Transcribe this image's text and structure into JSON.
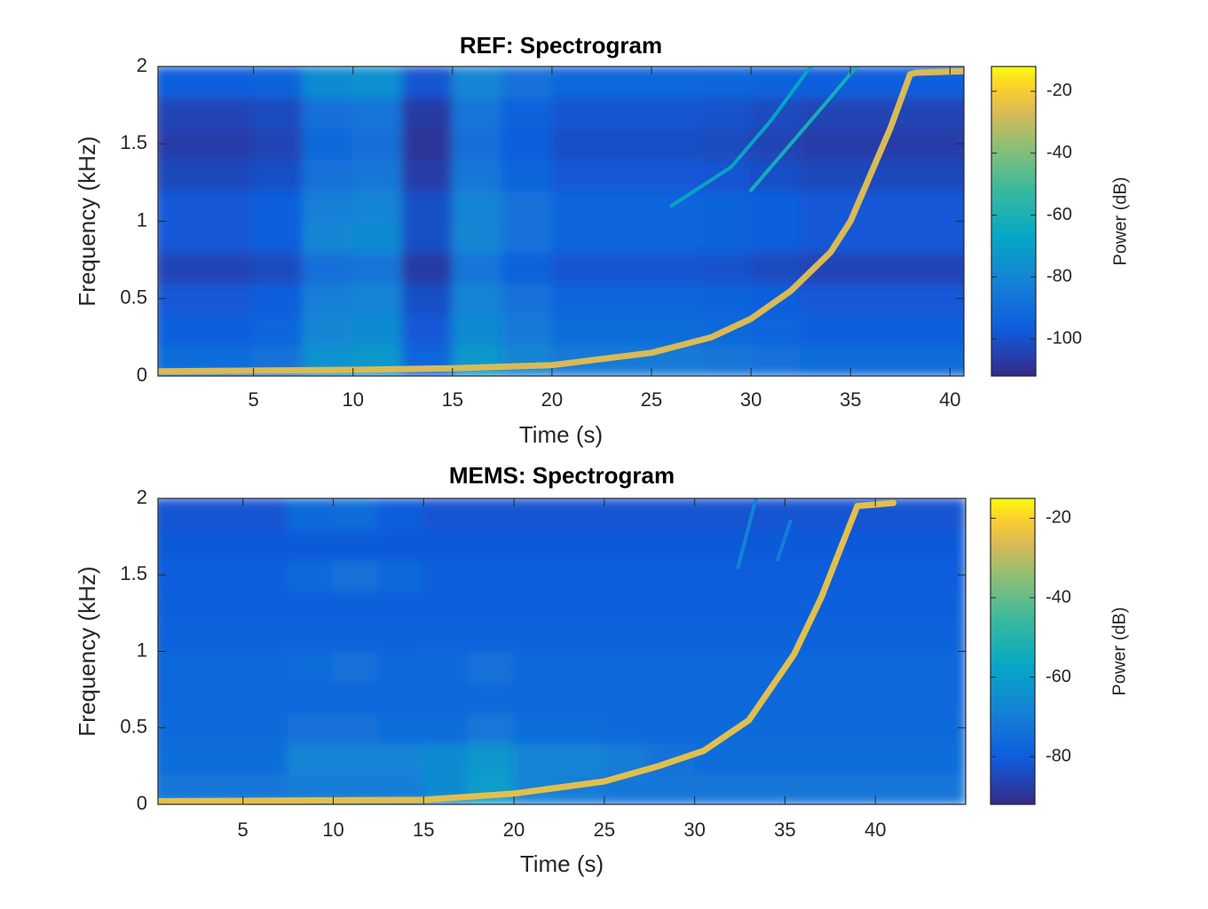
{
  "chart_data": [
    {
      "type": "spectrogram",
      "title": "REF: Spectrogram",
      "x_label": "Time (s)",
      "y_label": "Frequency (kHz)",
      "colorbar_label": "Power (dB)",
      "xlim": [
        0.2,
        40.7
      ],
      "xticks": [
        5,
        10,
        15,
        20,
        25,
        30,
        35,
        40
      ],
      "ylim": [
        0,
        2
      ],
      "yticks": [
        0,
        0.5,
        1,
        1.5,
        2
      ],
      "clim": [
        -112,
        -12
      ],
      "cticks": [
        -100,
        -80,
        -60,
        -40,
        -20
      ],
      "times": [
        1.25,
        3.75,
        6.25,
        8.75,
        11.25,
        13.75,
        16.25,
        18.75,
        21.25,
        23.75,
        26.25,
        28.75,
        31.25,
        33.75,
        36.25,
        38.75,
        41.25
      ],
      "frequencies": [
        0.1,
        0.3,
        0.5,
        0.7,
        0.9,
        1.1,
        1.3,
        1.5,
        1.7,
        1.9
      ],
      "values": [
        [
          -90,
          -90,
          -88,
          -75,
          -73,
          -93,
          -73,
          -80,
          -85,
          -85,
          -85,
          -86,
          -88,
          -90,
          -90,
          -90,
          -90
        ],
        [
          -95,
          -95,
          -93,
          -80,
          -78,
          -98,
          -78,
          -85,
          -90,
          -90,
          -90,
          -91,
          -93,
          -95,
          -95,
          -95,
          -95
        ],
        [
          -98,
          -98,
          -96,
          -83,
          -81,
          -101,
          -81,
          -88,
          -93,
          -93,
          -93,
          -94,
          -96,
          -98,
          -98,
          -98,
          -98
        ],
        [
          -104,
          -104,
          -102,
          -89,
          -87,
          -107,
          -87,
          -94,
          -99,
          -99,
          -99,
          -100,
          -102,
          -104,
          -104,
          -104,
          -104
        ],
        [
          -98,
          -98,
          -96,
          -80,
          -78,
          -101,
          -80,
          -88,
          -93,
          -93,
          -93,
          -94,
          -96,
          -98,
          -98,
          -98,
          -98
        ],
        [
          -98,
          -98,
          -96,
          -83,
          -81,
          -101,
          -81,
          -88,
          -93,
          -93,
          -93,
          -94,
          -96,
          -98,
          -98,
          -98,
          -98
        ],
        [
          -103,
          -103,
          -101,
          -88,
          -86,
          -106,
          -86,
          -93,
          -98,
          -98,
          -98,
          -99,
          -101,
          -103,
          -103,
          -103,
          -103
        ],
        [
          -106,
          -106,
          -104,
          -91,
          -89,
          -109,
          -89,
          -96,
          -101,
          -101,
          -101,
          -102,
          -104,
          -106,
          -106,
          -106,
          -106
        ],
        [
          -104,
          -104,
          -102,
          -89,
          -87,
          -107,
          -87,
          -94,
          -99,
          -99,
          -99,
          -100,
          -102,
          -104,
          -104,
          -104,
          -104
        ],
        [
          -96,
          -96,
          -94,
          -78,
          -76,
          -99,
          -80,
          -88,
          -92,
          -92,
          -92,
          -93,
          -94,
          -96,
          -96,
          -96,
          -96
        ]
      ],
      "chirps": [
        {
          "level": -27,
          "x": [
            0.2,
            10,
            15,
            20,
            25,
            28,
            30,
            32,
            34,
            35,
            36,
            37,
            38,
            38.3,
            40.7
          ],
          "y": [
            0.03,
            0.04,
            0.05,
            0.07,
            0.15,
            0.25,
            0.37,
            0.55,
            0.8,
            1.0,
            1.3,
            1.6,
            1.95,
            1.96,
            1.97
          ]
        },
        {
          "level": -68,
          "x": [
            26,
            29,
            31,
            33
          ],
          "y": [
            1.1,
            1.35,
            1.65,
            2.0
          ]
        },
        {
          "level": -62,
          "x": [
            30,
            32,
            34,
            35.3
          ],
          "y": [
            1.2,
            1.5,
            1.8,
            2.0
          ]
        }
      ]
    },
    {
      "type": "spectrogram",
      "title": "MEMS: Spectrogram",
      "x_label": "Time (s)",
      "y_label": "Frequency (kHz)",
      "colorbar_label": "Power (dB)",
      "xlim": [
        0.3,
        45
      ],
      "xticks": [
        5,
        10,
        15,
        20,
        25,
        30,
        35,
        40
      ],
      "ylim": [
        0,
        2
      ],
      "yticks": [
        0,
        0.5,
        1,
        1.5,
        2
      ],
      "clim": [
        -92,
        -15
      ],
      "cticks": [
        -80,
        -60,
        -40,
        -20
      ],
      "times": [
        1.25,
        3.75,
        6.25,
        8.75,
        11.25,
        13.75,
        16.25,
        18.75,
        21.25,
        23.75,
        26.25,
        28.75,
        31.25,
        33.75,
        36.25,
        38.75,
        41.25,
        43.75
      ],
      "frequencies": [
        0.1,
        0.3,
        0.5,
        0.7,
        0.9,
        1.1,
        1.3,
        1.5,
        1.7,
        1.9
      ],
      "values": [
        [
          -72,
          -72,
          -72,
          -70,
          -70,
          -70,
          -66,
          -60,
          -68,
          -70,
          -72,
          -72,
          -72,
          -72,
          -72,
          -72,
          -72,
          -72
        ],
        [
          -75,
          -75,
          -75,
          -68,
          -68,
          -68,
          -66,
          -62,
          -68,
          -68,
          -70,
          -74,
          -75,
          -75,
          -75,
          -75,
          -75,
          -75
        ],
        [
          -76,
          -76,
          -76,
          -74,
          -74,
          -75,
          -75,
          -72,
          -75,
          -75,
          -76,
          -76,
          -76,
          -76,
          -76,
          -76,
          -76,
          -76
        ],
        [
          -77,
          -77,
          -77,
          -77,
          -77,
          -77,
          -77,
          -76,
          -77,
          -77,
          -77,
          -77,
          -77,
          -77,
          -77,
          -77,
          -77,
          -77
        ],
        [
          -77,
          -77,
          -77,
          -75,
          -74,
          -77,
          -76,
          -74,
          -77,
          -77,
          -77,
          -77,
          -77,
          -77,
          -77,
          -77,
          -77,
          -77
        ],
        [
          -78,
          -78,
          -78,
          -78,
          -78,
          -78,
          -78,
          -78,
          -78,
          -78,
          -78,
          -78,
          -78,
          -78,
          -78,
          -78,
          -78,
          -78
        ],
        [
          -79,
          -79,
          -79,
          -79,
          -79,
          -79,
          -79,
          -79,
          -79,
          -79,
          -79,
          -79,
          -79,
          -79,
          -79,
          -79,
          -79,
          -79
        ],
        [
          -80,
          -80,
          -80,
          -76,
          -74,
          -76,
          -80,
          -80,
          -80,
          -80,
          -80,
          -80,
          -80,
          -80,
          -80,
          -80,
          -80,
          -80
        ],
        [
          -81,
          -81,
          -81,
          -81,
          -81,
          -81,
          -81,
          -81,
          -81,
          -81,
          -81,
          -81,
          -81,
          -81,
          -81,
          -81,
          -81,
          -81
        ],
        [
          -82,
          -82,
          -82,
          -76,
          -75,
          -80,
          -82,
          -82,
          -82,
          -82,
          -82,
          -82,
          -82,
          -82,
          -82,
          -82,
          -82,
          -82
        ]
      ],
      "chirps": [
        {
          "level": -25,
          "x": [
            0.3,
            15,
            20,
            25,
            28,
            30.5,
            33,
            35.5,
            37,
            38.5,
            39,
            41
          ],
          "y": [
            0.02,
            0.03,
            0.07,
            0.15,
            0.25,
            0.35,
            0.55,
            0.98,
            1.35,
            1.8,
            1.95,
            1.97
          ]
        },
        {
          "level": -68,
          "x": [
            32.4,
            33.4
          ],
          "y": [
            1.55,
            2.0
          ]
        },
        {
          "level": -70,
          "x": [
            34.6,
            35.3
          ],
          "y": [
            1.6,
            1.85
          ]
        }
      ]
    }
  ]
}
